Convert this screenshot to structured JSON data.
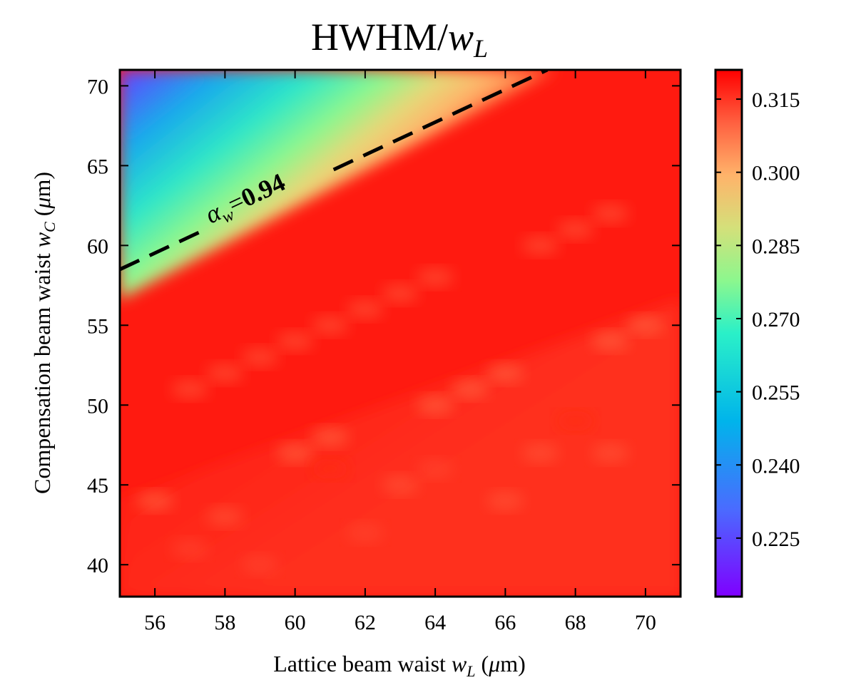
{
  "chart_data": {
    "type": "heatmap",
    "title": "HWHM/w_L",
    "title_parts": {
      "main": "HWHM/",
      "var": "w",
      "sub": "L"
    },
    "xlabel": "Lattice beam waist w_L (μm)",
    "xlabel_parts": {
      "prefix": "Lattice beam waist ",
      "var": "w",
      "sub": "L",
      "suffix_pre": " (",
      "mu": "μ",
      "suffix_post": "m)"
    },
    "ylabel": "Compensation beam waist w_C (μm)",
    "ylabel_parts": {
      "prefix": "Compensation beam waist ",
      "var": "w",
      "sub": "C",
      "suffix_pre": " (",
      "mu": "μ",
      "suffix_post": "m)"
    },
    "xlim": [
      55,
      71
    ],
    "ylim": [
      38,
      71
    ],
    "xticks": [
      "56",
      "58",
      "60",
      "62",
      "64",
      "66",
      "68",
      "70"
    ],
    "xtick_values": [
      56,
      58,
      60,
      62,
      64,
      66,
      68,
      70
    ],
    "yticks": [
      "40",
      "45",
      "50",
      "55",
      "60",
      "65",
      "70"
    ],
    "ytick_values": [
      40,
      45,
      50,
      55,
      60,
      65,
      70
    ],
    "colorbar": {
      "min": 0.213,
      "max": 0.321,
      "ticks": [
        "0.225",
        "0.240",
        "0.255",
        "0.270",
        "0.285",
        "0.300",
        "0.315"
      ],
      "tick_values": [
        0.225,
        0.24,
        0.255,
        0.27,
        0.285,
        0.3,
        0.315
      ],
      "colormap": "rainbow"
    },
    "contour": {
      "label_parts": {
        "var": "α",
        "sub": "w",
        "eq": "=",
        "value": "0.94"
      },
      "alpha_w": 0.94,
      "style": "dashed",
      "color": "#000000",
      "x": [
        55,
        67.2
      ],
      "y": [
        58.5,
        71
      ]
    },
    "colors": {
      "plateau": "#ff1a10",
      "low": "#6e2bff"
    }
  }
}
